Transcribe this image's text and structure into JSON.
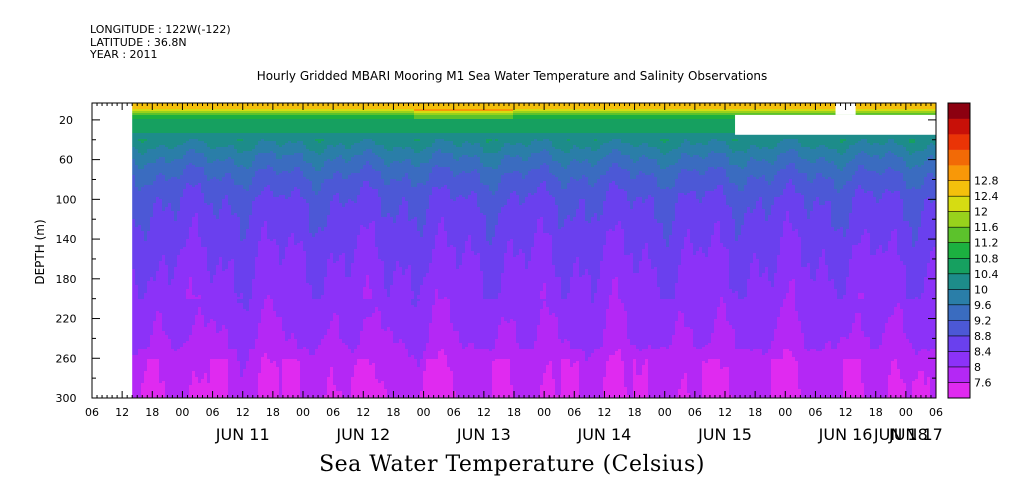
{
  "header": {
    "longitude": "LONGITUDE : 122W(-122)",
    "latitude": "LATITUDE : 36.8N",
    "year": "YEAR : 2011",
    "title": "Hourly Gridded MBARI Mooring M1 Sea Water Temperature and Salinity Observations"
  },
  "footer": {
    "label": "Sea Water Temperature (Celsius)"
  },
  "chart_data": {
    "type": "heatmap",
    "title": "Hourly Gridded MBARI Mooring M1 Sea Water Temperature and Salinity Observations",
    "xlabel": "",
    "ylabel": "DEPTH (m)",
    "colorbar_label": "Sea Water Temperature (Celsius)",
    "x_tick_labels": [
      "06",
      "12",
      "18",
      "00",
      "06",
      "12",
      "18",
      "00",
      "06",
      "12",
      "18",
      "00",
      "06",
      "12",
      "18",
      "00",
      "06",
      "12",
      "18",
      "00",
      "06",
      "12",
      "18",
      "00",
      "06",
      "12",
      "18",
      "00",
      "06"
    ],
    "day_labels": [
      "JUN 11",
      "JUN 12",
      "JUN 13",
      "JUN 14",
      "JUN 15",
      "JUN 16",
      "JUN 17",
      "JUN 18"
    ],
    "x_range_hours": [
      6,
      174
    ],
    "data_start_hour": 14,
    "y_ticks": [
      20,
      60,
      100,
      140,
      180,
      220,
      260,
      300
    ],
    "ylim": [
      300,
      3
    ],
    "colorbar_levels": [
      7.6,
      8,
      8.4,
      8.8,
      9.2,
      9.6,
      10,
      10.4,
      10.8,
      11.2,
      11.6,
      12,
      12.4,
      12.8
    ],
    "colorbar_colors": [
      "#e02af0",
      "#b428f5",
      "#8c32f8",
      "#6a40ee",
      "#4c58d6",
      "#3a6cc0",
      "#2a7ea8",
      "#1d8c8a",
      "#16a060",
      "#1cb040",
      "#5cc22c",
      "#98d21c",
      "#d6dc12",
      "#f4c00c",
      "#f89808",
      "#f26a06",
      "#ea3406",
      "#c81008",
      "#8c0010"
    ],
    "temperature_profile": {
      "depths": [
        3,
        10,
        15,
        22,
        30,
        40,
        55,
        75,
        100,
        130,
        160,
        200,
        240,
        270,
        300
      ],
      "mean_temperature": [
        12.6,
        12.4,
        11.0,
        10.7,
        10.5,
        10.2,
        9.7,
        9.2,
        8.8,
        8.6,
        8.4,
        8.2,
        8.0,
        7.8,
        7.7
      ]
    },
    "missing_regions": [
      {
        "x_hours": [
          6,
          14
        ],
        "depth": [
          3,
          300
        ]
      },
      {
        "x_hours": [
          134,
          174
        ],
        "depth": [
          15,
          35
        ]
      },
      {
        "x_hours": [
          154,
          158
        ],
        "depth": [
          3,
          15
        ]
      }
    ]
  }
}
